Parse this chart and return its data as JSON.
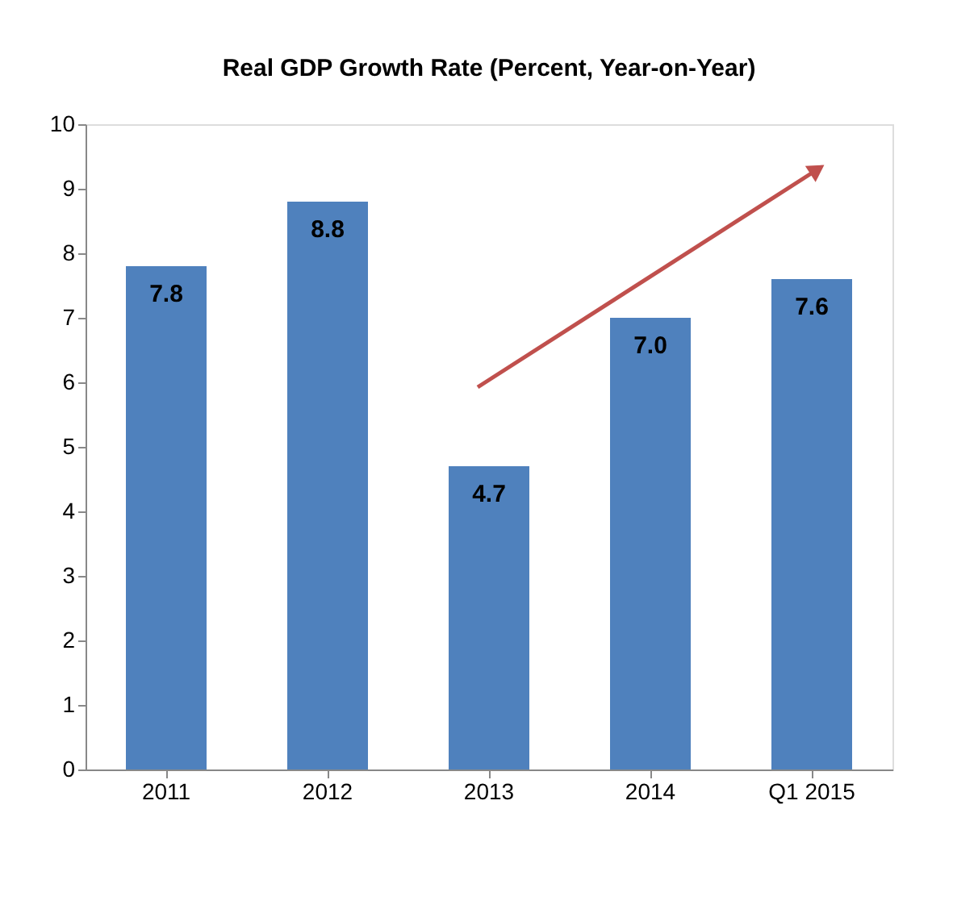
{
  "chart_data": {
    "type": "bar",
    "title": "Real GDP Growth Rate (Percent, Year-on-Year)",
    "categories": [
      "2011",
      "2012",
      "2013",
      "2014",
      "Q1 2015"
    ],
    "values": [
      7.8,
      8.8,
      4.7,
      7.0,
      7.6
    ],
    "value_labels": [
      "7.8",
      "8.8",
      "4.7",
      "7.0",
      "7.6"
    ],
    "color": "#4f81bd",
    "ylim": [
      0,
      10
    ],
    "yticks": [
      0,
      1,
      2,
      3,
      4,
      5,
      6,
      7,
      8,
      9,
      10
    ],
    "grid": false
  }
}
